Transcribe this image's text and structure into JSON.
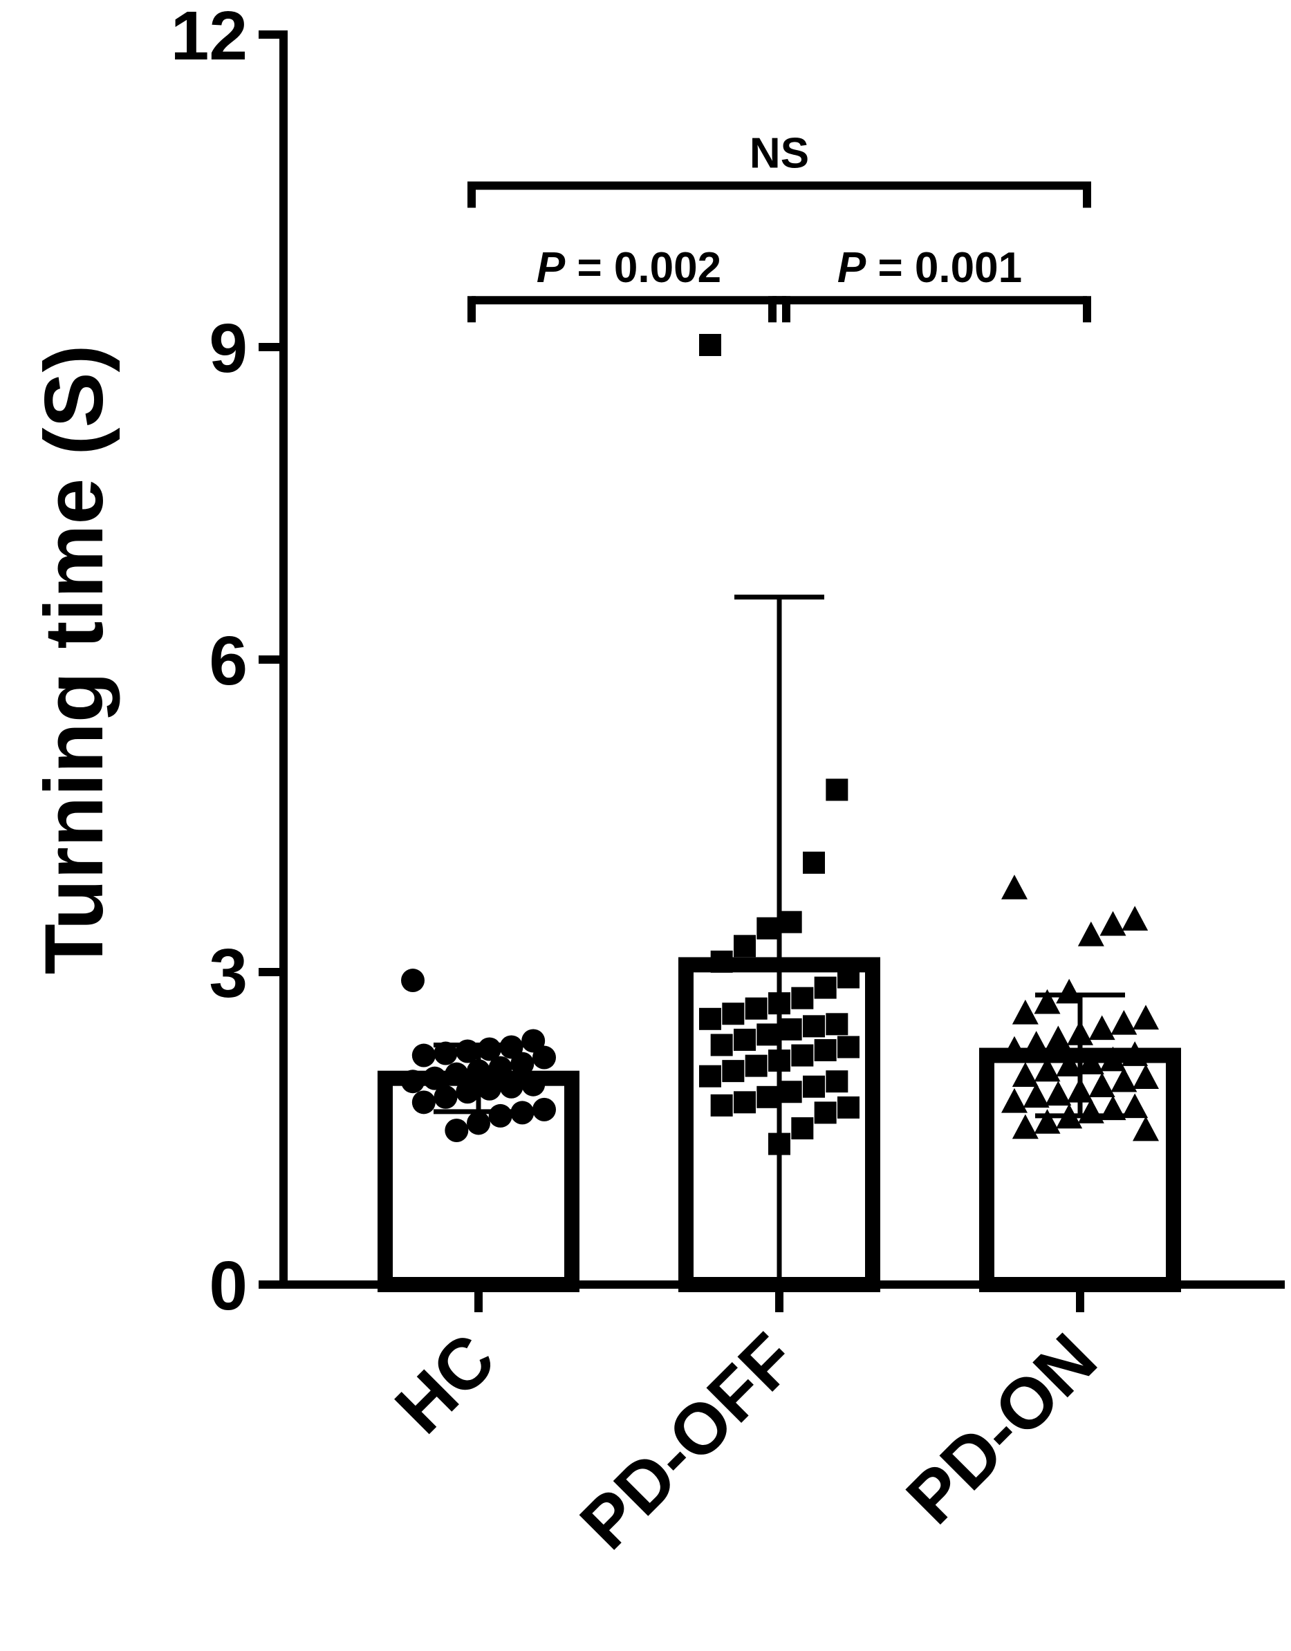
{
  "chart_data": {
    "type": "bar",
    "ylabel": "Turning time (S)",
    "xlabel": "",
    "ylim": [
      0,
      12
    ],
    "yticks": [
      0,
      3,
      6,
      9,
      12
    ],
    "categories": [
      "HC",
      "PD-OFF",
      "PD-ON"
    ],
    "series": [
      {
        "means": [
          1.98,
          3.07,
          2.2
        ],
        "sd": [
          0.32,
          3.53,
          0.58
        ],
        "markers": [
          "circle",
          "square",
          "triangle"
        ],
        "points": [
          [
            2.92,
            2.34,
            2.28,
            2.26,
            2.24,
            2.22,
            2.2,
            2.18,
            2.12,
            2.08,
            2.05,
            2.02,
            1.98,
            1.95,
            1.92,
            1.9,
            1.88,
            1.85,
            1.8,
            1.75,
            1.68,
            1.65,
            1.62,
            1.55,
            1.48
          ],
          [
            9.02,
            4.75,
            4.05,
            3.48,
            3.42,
            3.25,
            3.1,
            2.95,
            2.85,
            2.75,
            2.7,
            2.65,
            2.6,
            2.55,
            2.5,
            2.48,
            2.45,
            2.4,
            2.35,
            2.3,
            2.28,
            2.25,
            2.2,
            2.15,
            2.1,
            2.05,
            2.0,
            1.95,
            1.9,
            1.85,
            1.8,
            1.75,
            1.72,
            1.7,
            1.65,
            1.5,
            1.35
          ],
          [
            3.8,
            3.5,
            3.45,
            3.35,
            2.8,
            2.7,
            2.6,
            2.55,
            2.5,
            2.45,
            2.4,
            2.35,
            2.3,
            2.25,
            2.2,
            2.15,
            2.12,
            2.1,
            2.05,
            2.0,
            1.98,
            1.95,
            1.9,
            1.85,
            1.82,
            1.8,
            1.75,
            1.7,
            1.68,
            1.65,
            1.6,
            1.55,
            1.5,
            1.48
          ]
        ]
      }
    ],
    "annotations": [
      {
        "from": "HC",
        "to": "PD-ON",
        "y": 10.55,
        "label": "NS",
        "italic_prefix": "",
        "label_rest": "NS"
      },
      {
        "from": "HC",
        "to": "PD-OFF",
        "y": 9.45,
        "label": "P = 0.002",
        "italic_prefix": "P",
        "label_rest": " = 0.002"
      },
      {
        "from": "PD-OFF",
        "to": "PD-ON",
        "y": 9.45,
        "label": "P = 0.001",
        "italic_prefix": "P",
        "label_rest": " = 0.001"
      }
    ],
    "colors": {
      "stroke": "#000000",
      "fill": "#ffffff"
    }
  }
}
